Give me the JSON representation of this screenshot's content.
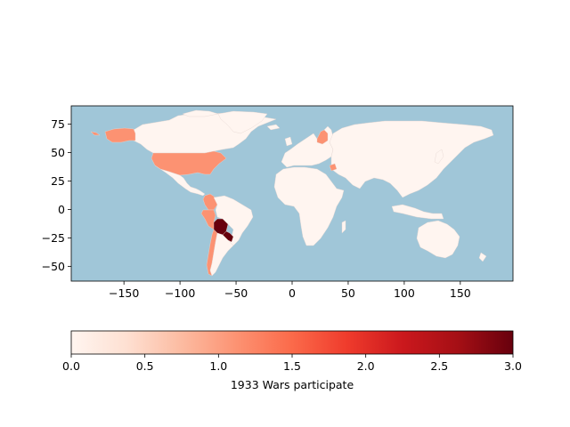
{
  "colors": {
    "ocean": "#a0c6d8",
    "frame": "#000000",
    "border": "#e4d6d0",
    "value_0": "#fff5f0",
    "value_1": "#fca082",
    "value_3": "#67000d",
    "colormap": [
      "#fff5f0",
      "#fee0d2",
      "#fcbba1",
      "#fc9272",
      "#fb6a4a",
      "#ef3b2c",
      "#cb181d",
      "#a50f15",
      "#67000d"
    ]
  },
  "map": {
    "xlim": [
      -197,
      197
    ],
    "ylim": [
      -63,
      91
    ],
    "x_ticks": [
      "−150",
      "−100",
      "−50",
      "0",
      "50",
      "100",
      "150"
    ],
    "y_ticks": [
      "75",
      "50",
      "25",
      "0",
      "−25",
      "−50"
    ]
  },
  "regions": [
    {
      "name": "Alaska",
      "value": 1
    },
    {
      "name": "Canada",
      "value": 0
    },
    {
      "name": "Greenland",
      "value": 0
    },
    {
      "name": "United States",
      "value": 1
    },
    {
      "name": "Mexico",
      "value": 0
    },
    {
      "name": "Colombia",
      "value": 1
    },
    {
      "name": "Peru",
      "value": 1
    },
    {
      "name": "Bolivia",
      "value": 3
    },
    {
      "name": "Paraguay",
      "value": 3
    },
    {
      "name": "Chile",
      "value": 1
    },
    {
      "name": "Argentina",
      "value": 0
    },
    {
      "name": "Brazil",
      "value": 0
    },
    {
      "name": "Finland",
      "value": 1
    },
    {
      "name": "Syria",
      "value": 1
    },
    {
      "name": "Africa",
      "value": 0
    },
    {
      "name": "Europe",
      "value": 0
    },
    {
      "name": "Asia",
      "value": 0
    },
    {
      "name": "Australia",
      "value": 0
    }
  ],
  "colorbar": {
    "ticks": [
      "0.0",
      "0.5",
      "1.0",
      "1.5",
      "2.0",
      "2.5",
      "3.0"
    ],
    "label": "1933 Wars participate",
    "vmin": 0,
    "vmax": 3
  }
}
